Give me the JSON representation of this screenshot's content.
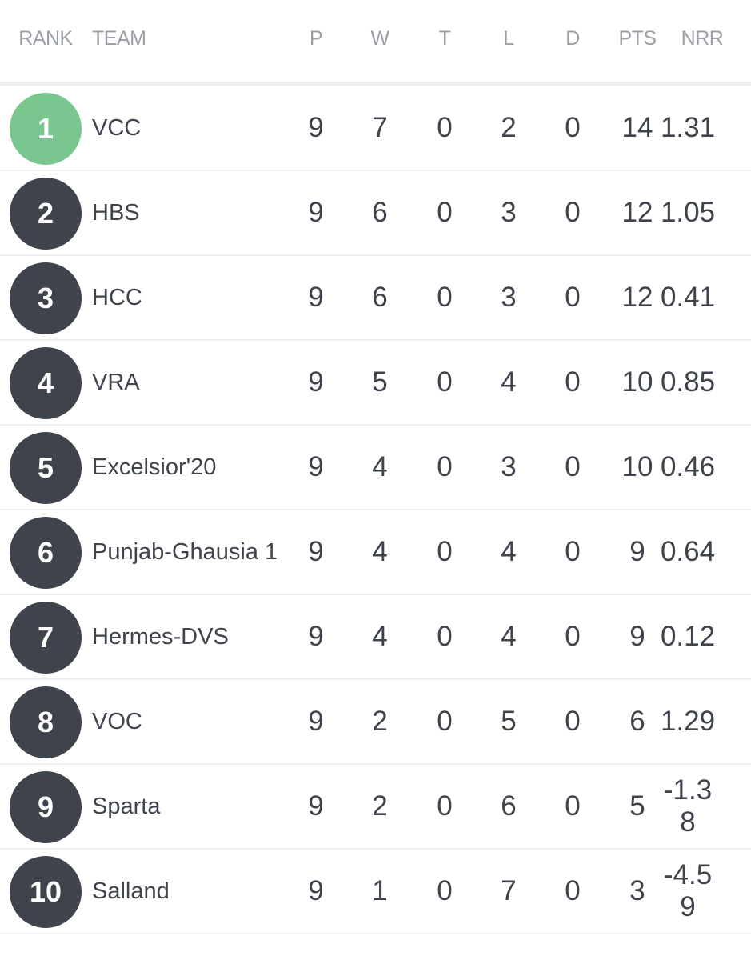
{
  "table": {
    "header": [
      "RANK",
      "TEAM",
      "P",
      "W",
      "T",
      "L",
      "D",
      "PTS",
      "NRR"
    ],
    "rows": [
      [
        1,
        "VCC",
        9,
        7,
        0,
        2,
        0,
        14,
        1.31
      ],
      [
        2,
        "HBS",
        9,
        6,
        0,
        3,
        0,
        12,
        1.05
      ],
      [
        3,
        "HCC",
        9,
        6,
        0,
        3,
        0,
        12,
        0.41
      ],
      [
        4,
        "VRA",
        9,
        5,
        0,
        4,
        0,
        10,
        0.85
      ],
      [
        5,
        "Excelsior'20",
        9,
        4,
        0,
        3,
        0,
        10,
        0.46
      ],
      [
        6,
        "Punjab-Ghausia 1",
        9,
        4,
        0,
        4,
        0,
        9,
        0.64
      ],
      [
        7,
        "Hermes-DVS",
        9,
        4,
        0,
        4,
        0,
        9,
        0.12
      ],
      [
        8,
        "VOC",
        9,
        2,
        0,
        5,
        0,
        6,
        1.29
      ],
      [
        9,
        "Sparta",
        9,
        2,
        0,
        6,
        0,
        5,
        -1.38
      ],
      [
        10,
        "Salland",
        9,
        1,
        0,
        7,
        0,
        3,
        -4.59
      ]
    ]
  }
}
